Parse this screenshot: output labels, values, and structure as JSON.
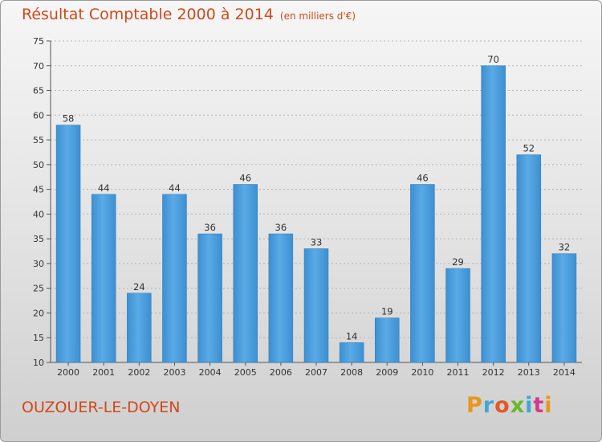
{
  "header": {
    "title": "Résultat Comptable 2000 à 2014",
    "subtitle": "(en milliers d'€)"
  },
  "footer": {
    "location": "OUZOUER-LE-DOYEN",
    "logo": "Proxiti",
    "logo_colors": [
      "#e8961e",
      "#3fa7d8",
      "#e05a2b",
      "#6bb82a",
      "#3fa7d8",
      "#d33a8c",
      "#e8961e"
    ]
  },
  "colors": {
    "bar": "#3d8fd1",
    "bar_light": "#5aaae6",
    "title": "#d0491a"
  },
  "chart_data": {
    "type": "bar",
    "title": "Résultat Comptable 2000 à 2014",
    "subtitle": "(en milliers d'€)",
    "categories": [
      "2000",
      "2001",
      "2002",
      "2003",
      "2004",
      "2005",
      "2006",
      "2007",
      "2008",
      "2009",
      "2010",
      "2011",
      "2012",
      "2013",
      "2014"
    ],
    "values": [
      58,
      44,
      24,
      44,
      36,
      46,
      36,
      33,
      14,
      19,
      46,
      29,
      70,
      52,
      32
    ],
    "ylim": [
      10,
      75
    ],
    "yticks": [
      10,
      15,
      20,
      25,
      30,
      35,
      40,
      45,
      50,
      55,
      60,
      65,
      70,
      75
    ],
    "grid": "horizontal dashed",
    "data_labels": true
  }
}
